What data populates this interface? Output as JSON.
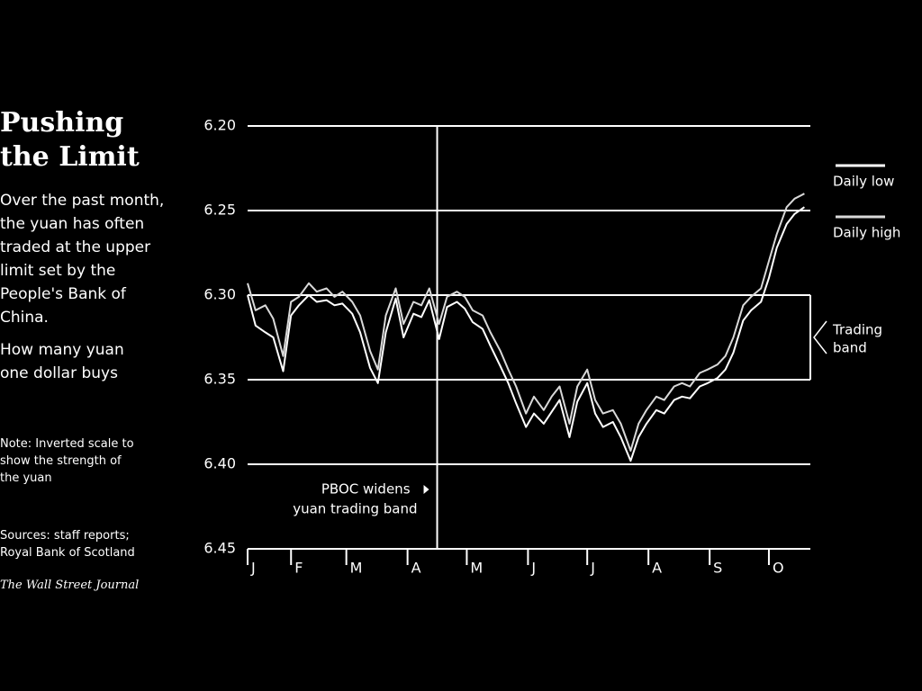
{
  "chart_data": {
    "type": "line",
    "title": "Pushing the Limit",
    "description": "Over the past month, the yuan has often traded at the upper limit set by the People's Bank of China.",
    "subtitle": "How many yuan one dollar buys",
    "note": "Note: Inverted scale to show the strength of the yuan",
    "sources": "Sources: staff reports; Royal Bank of Scotland",
    "credit": "The Wall Street Journal",
    "inverted": true,
    "grid": true,
    "ylim": [
      6.2,
      6.45
    ],
    "yticks": [
      {
        "value": 6.2,
        "label": "6.20"
      },
      6.25,
      {
        "value": 6.3,
        "label": "6.30"
      },
      6.35,
      {
        "value": 6.4,
        "label": "6.40"
      },
      6.45
    ],
    "xlim": [
      10,
      295
    ],
    "xticks": [
      {
        "value": 10,
        "label": "J"
      },
      {
        "value": 32,
        "label": "F"
      },
      {
        "value": 60,
        "label": "M"
      },
      {
        "value": 91,
        "label": "A"
      },
      {
        "value": 121,
        "label": "M"
      },
      {
        "value": 152,
        "label": "J"
      },
      {
        "value": 182,
        "label": "J"
      },
      {
        "value": 213,
        "label": "A"
      },
      {
        "value": 244,
        "label": "S"
      },
      {
        "value": 274,
        "label": "O"
      }
    ],
    "x": [
      10,
      14,
      19,
      23,
      28,
      32,
      36,
      41,
      45,
      50,
      54,
      58,
      63,
      67,
      72,
      76,
      80,
      85,
      89,
      94,
      98,
      102,
      107,
      111,
      116,
      120,
      124,
      129,
      133,
      138,
      142,
      146,
      151,
      155,
      160,
      164,
      168,
      173,
      177,
      182,
      186,
      190,
      195,
      199,
      204,
      208,
      212,
      217,
      221,
      226,
      230,
      234,
      239,
      243,
      248,
      252,
      256,
      261,
      265,
      270,
      274,
      278,
      283,
      287,
      292
    ],
    "series": [
      {
        "name": "Daily low",
        "color": "#ffffff",
        "values": [
          6.3,
          6.318,
          6.322,
          6.325,
          6.345,
          6.312,
          6.306,
          6.3,
          6.304,
          6.303,
          6.306,
          6.305,
          6.311,
          6.322,
          6.343,
          6.352,
          6.322,
          6.302,
          6.325,
          6.311,
          6.313,
          6.303,
          6.326,
          6.307,
          6.304,
          6.308,
          6.316,
          6.32,
          6.33,
          6.342,
          6.352,
          6.364,
          6.378,
          6.37,
          6.376,
          6.369,
          6.362,
          6.384,
          6.363,
          6.352,
          6.37,
          6.378,
          6.375,
          6.384,
          6.398,
          6.384,
          6.376,
          6.368,
          6.37,
          6.362,
          6.36,
          6.361,
          6.354,
          6.352,
          6.349,
          6.344,
          6.334,
          6.315,
          6.309,
          6.304,
          6.29,
          6.272,
          6.258,
          6.252,
          6.248
        ]
      },
      {
        "name": "Daily high",
        "color": "#d9d9d9",
        "values": [
          6.293,
          6.309,
          6.306,
          6.314,
          6.336,
          6.304,
          6.301,
          6.293,
          6.298,
          6.296,
          6.301,
          6.298,
          6.304,
          6.312,
          6.333,
          6.344,
          6.312,
          6.296,
          6.317,
          6.304,
          6.306,
          6.296,
          6.317,
          6.301,
          6.298,
          6.301,
          6.309,
          6.312,
          6.322,
          6.333,
          6.344,
          6.354,
          6.37,
          6.36,
          6.368,
          6.36,
          6.354,
          6.376,
          6.354,
          6.344,
          6.362,
          6.37,
          6.368,
          6.376,
          6.392,
          6.376,
          6.368,
          6.36,
          6.362,
          6.354,
          6.352,
          6.354,
          6.346,
          6.344,
          6.341,
          6.336,
          6.325,
          6.306,
          6.301,
          6.296,
          6.28,
          6.264,
          6.248,
          6.243,
          6.24
        ]
      }
    ],
    "event": {
      "x": 106,
      "label": [
        "PBOC widens",
        "yuan trading band"
      ]
    },
    "band": {
      "range": [
        6.3,
        6.35
      ],
      "label": [
        "Trading",
        "band"
      ]
    }
  }
}
